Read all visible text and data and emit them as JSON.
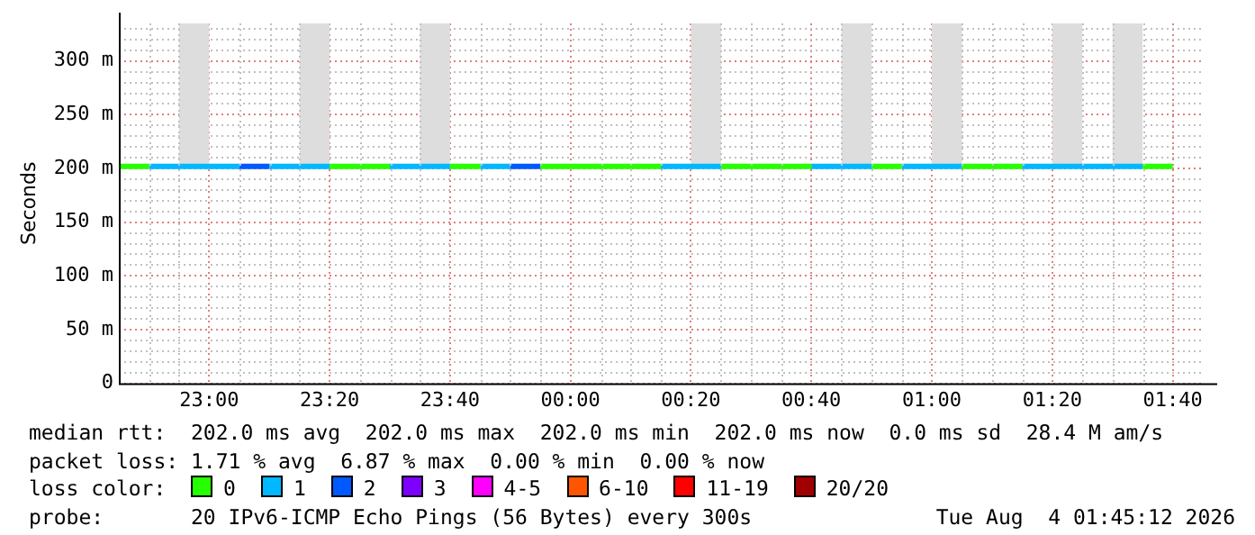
{
  "chart_data": {
    "type": "line",
    "ylabel": "Seconds",
    "legend_title": "loss color:",
    "legend": "bottom",
    "grid": true,
    "marker": "none",
    "line_style": "solid",
    "xlim": [
      "2026-08-03T22:45",
      "2026-08-04T01:45"
    ],
    "ylim": [
      0,
      335
    ],
    "xticks": [
      {
        "value": "2026-08-03T23:00",
        "label": "23:00"
      },
      {
        "value": "2026-08-03T23:20",
        "label": "23:20"
      },
      {
        "value": "2026-08-03T23:40",
        "label": "23:40"
      },
      {
        "value": "2026-08-04T00:00",
        "label": "00:00"
      },
      {
        "value": "2026-08-04T00:20",
        "label": "00:20"
      },
      {
        "value": "2026-08-04T00:40",
        "label": "00:40"
      },
      {
        "value": "2026-08-04T01:00",
        "label": "01:00"
      },
      {
        "value": "2026-08-04T01:20",
        "label": "01:20"
      },
      {
        "value": "2026-08-04T01:40",
        "label": "01:40"
      }
    ],
    "yticks": [
      0,
      {
        "value": 10,
        "label": null
      },
      {
        "value": 20,
        "label": null
      },
      {
        "value": 30,
        "label": null
      },
      {
        "value": 40,
        "label": null
      },
      {
        "value": 50,
        "label": "50 m"
      },
      {
        "value": 60,
        "label": null
      },
      {
        "value": 70,
        "label": null
      },
      {
        "value": 80,
        "label": null
      },
      {
        "value": 90,
        "label": null
      },
      {
        "value": 100,
        "label": "100 m"
      },
      {
        "value": 110,
        "label": null
      },
      {
        "value": 120,
        "label": null
      },
      {
        "value": 130,
        "label": null
      },
      {
        "value": 140,
        "label": null
      },
      {
        "value": 150,
        "label": "150 m"
      },
      {
        "value": 160,
        "label": null
      },
      {
        "value": 170,
        "label": null
      },
      {
        "value": 180,
        "label": null
      },
      {
        "value": 190,
        "label": null
      },
      {
        "value": 200,
        "label": "200 m"
      },
      {
        "value": 210,
        "label": null
      },
      {
        "value": 220,
        "label": null
      },
      {
        "value": 230,
        "label": null
      },
      {
        "value": 240,
        "label": null
      },
      {
        "value": 250,
        "label": "250 m"
      },
      {
        "value": 260,
        "label": null
      },
      {
        "value": 270,
        "label": null
      },
      {
        "value": 280,
        "label": null
      },
      {
        "value": 290,
        "label": null
      },
      {
        "value": 300,
        "label": "300 m"
      },
      {
        "value": 310,
        "label": null
      },
      {
        "value": 320,
        "label": null
      },
      {
        "value": 330,
        "label": null
      }
    ],
    "series": [
      {
        "type": "bar",
        "color": "#dddddd",
        "x": [
          "2026-08-03T22:57:30",
          "2026-08-03T23:17:30",
          "2026-08-03T23:37:30",
          "2026-08-04T00:22:30",
          "2026-08-04T00:47:30",
          "2026-08-04T01:02:30",
          "2026-08-04T01:22:30",
          "2026-08-04T01:32:30"
        ],
        "base": [
          202,
          202,
          202,
          202,
          202,
          202,
          202,
          202
        ],
        "values": [
          133,
          133,
          133,
          133,
          133,
          133,
          133,
          133
        ]
      },
      {
        "name": "0",
        "color": "#26ff00",
        "x": [
          "2026-08-03T22:45",
          "2026-08-03T22:50",
          null,
          "2026-08-03T23:20",
          "2026-08-03T23:30",
          null,
          "2026-08-03T23:40",
          "2026-08-03T23:45",
          null,
          "2026-08-03T23:55",
          "2026-08-04T00:15",
          null,
          "2026-08-04T00:25",
          "2026-08-04T00:40",
          null,
          "2026-08-04T00:50",
          "2026-08-04T00:55",
          null,
          "2026-08-04T01:05",
          "2026-08-04T01:15",
          null,
          "2026-08-04T01:35",
          "2026-08-04T01:40"
        ],
        "values": [
          202,
          202,
          null,
          202,
          202,
          null,
          202,
          202,
          null,
          202,
          202,
          null,
          202,
          202,
          null,
          202,
          202,
          null,
          202,
          202,
          null,
          202,
          202
        ]
      },
      {
        "name": "1",
        "color": "#00b8ff",
        "x": [
          "2026-08-03T22:50",
          "2026-08-03T23:05",
          null,
          "2026-08-03T23:10",
          "2026-08-03T23:20",
          null,
          "2026-08-03T23:30",
          "2026-08-03T23:40",
          null,
          "2026-08-03T23:45",
          "2026-08-03T23:50",
          null,
          "2026-08-04T00:15",
          "2026-08-04T00:25",
          null,
          "2026-08-04T00:40",
          "2026-08-04T00:50",
          null,
          "2026-08-04T00:55",
          "2026-08-04T01:05",
          null,
          "2026-08-04T01:15",
          "2026-08-04T01:35"
        ],
        "values": [
          202,
          202,
          null,
          202,
          202,
          null,
          202,
          202,
          null,
          202,
          202,
          null,
          202,
          202,
          null,
          202,
          202,
          null,
          202,
          202,
          null,
          202,
          202
        ]
      },
      {
        "name": "2",
        "color": "#0059ff",
        "x": [
          "2026-08-03T23:05",
          "2026-08-03T23:10",
          null,
          "2026-08-03T23:50",
          "2026-08-03T23:55"
        ],
        "values": [
          202,
          202,
          null,
          202,
          202
        ]
      },
      {
        "name": "3",
        "color": "#7e00ff"
      },
      {
        "name": "4-5",
        "color": "#ff00ff"
      },
      {
        "name": "6-10",
        "color": "#ff5500"
      },
      {
        "name": "11-19",
        "color": "#ff0000"
      },
      {
        "name": "20/20",
        "color": "#a10000"
      }
    ],
    "annotations": [
      "median rtt:  202.0 ms avg  202.0 ms max  202.0 ms min  202.0 ms now  0.0 ms sd  28.4 M am/s",
      "packet loss: 1.71 % avg  6.87 % max  0.00 % min  0.00 % now",
      "probe:       20 IPv6-ICMP Echo Pings (56 Bytes) every 300s",
      "Tue Aug  4 01:45:12 2026"
    ]
  }
}
